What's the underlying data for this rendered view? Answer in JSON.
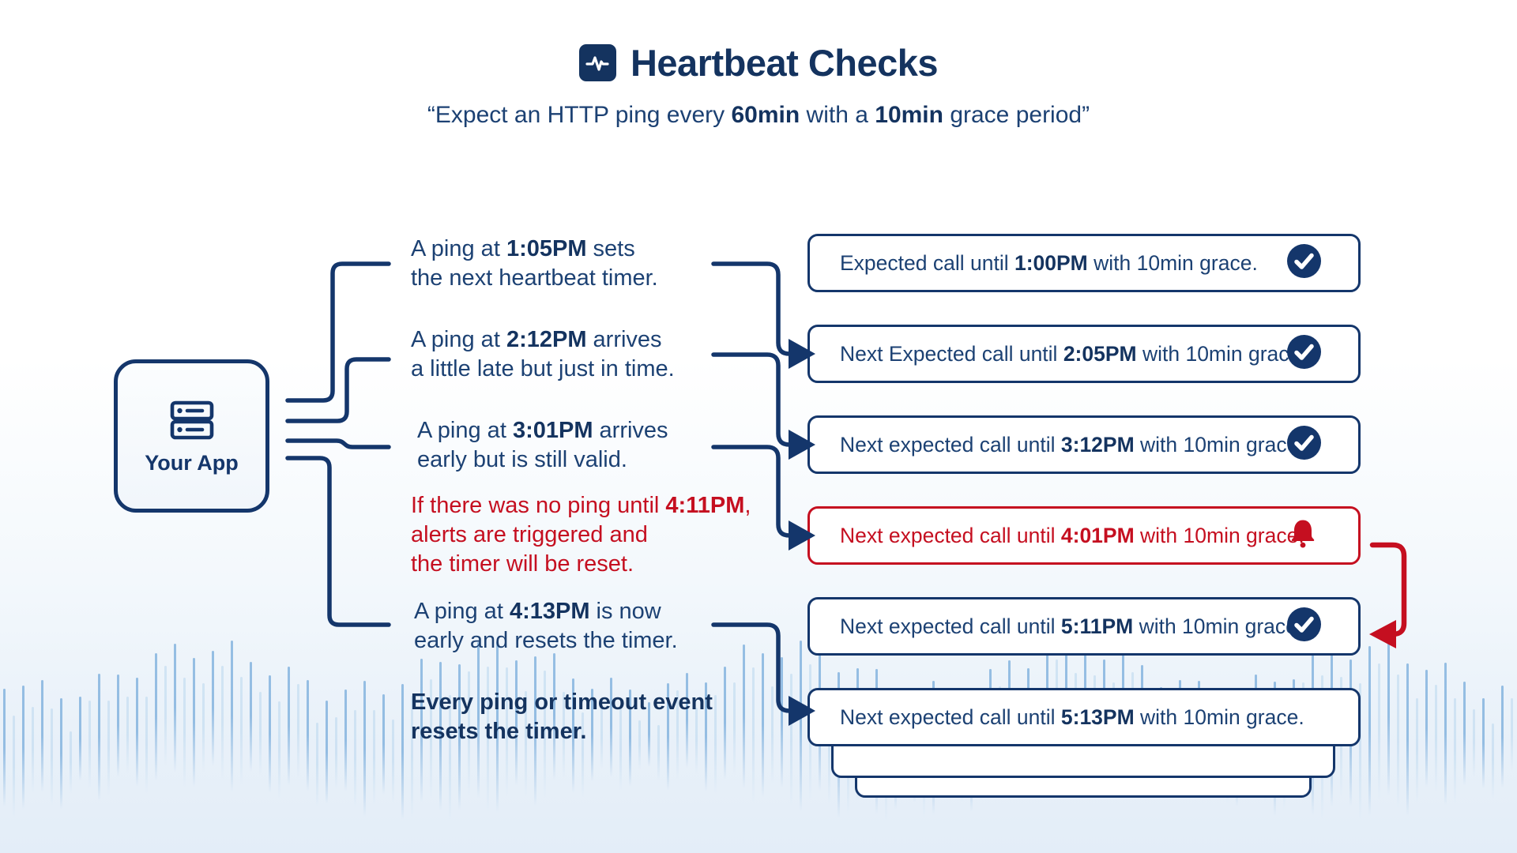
{
  "header": {
    "title": "Heartbeat Checks",
    "title_icon": "heartbeat-pulse-icon",
    "subtitle": [
      {
        "t": "“Expect an HTTP ping every "
      },
      {
        "t": "60min",
        "b": true
      },
      {
        "t": " with a "
      },
      {
        "t": "10min",
        "b": true
      },
      {
        "t": " grace period”"
      }
    ]
  },
  "app_box": {
    "icon": "server-icon",
    "label": "Your App"
  },
  "ping_labels": [
    {
      "tone": "navy",
      "lines": [
        [
          {
            "t": "A ping at "
          },
          {
            "t": "1:05PM",
            "b": true
          },
          {
            "t": " sets"
          }
        ],
        [
          {
            "t": "the next heartbeat timer."
          }
        ]
      ]
    },
    {
      "tone": "navy",
      "lines": [
        [
          {
            "t": "A ping at "
          },
          {
            "t": "2:12PM",
            "b": true
          },
          {
            "t": " arrives"
          }
        ],
        [
          {
            "t": "a little late but just in time."
          }
        ]
      ]
    },
    {
      "tone": "navy",
      "lines": [
        [
          {
            "t": "A ping at "
          },
          {
            "t": "3:01PM",
            "b": true
          },
          {
            "t": " arrives"
          }
        ],
        [
          {
            "t": "early but is still valid."
          }
        ]
      ]
    },
    {
      "tone": "red",
      "lines": [
        [
          {
            "t": "If there was no ping until "
          },
          {
            "t": "4:11PM",
            "b": true
          },
          {
            "t": ","
          }
        ],
        [
          {
            "t": "alerts are triggered and"
          }
        ],
        [
          {
            "t": "the timer will be reset."
          }
        ]
      ]
    },
    {
      "tone": "navy",
      "lines": [
        [
          {
            "t": "A ping at "
          },
          {
            "t": "4:13PM",
            "b": true
          },
          {
            "t": " is now"
          }
        ],
        [
          {
            "t": "early and resets the timer."
          }
        ]
      ]
    },
    {
      "tone": "bold",
      "lines": [
        [
          {
            "t": "Every ping or timeout event",
            "b": true
          }
        ],
        [
          {
            "t": "resets the timer.",
            "b": true
          }
        ]
      ]
    }
  ],
  "status_boxes": [
    {
      "tone": "ok",
      "icon": "check-circle-icon",
      "segments": [
        {
          "t": "Expected call until "
        },
        {
          "t": "1:00PM",
          "b": true
        },
        {
          "t": " with 10min grace."
        }
      ]
    },
    {
      "tone": "ok",
      "icon": "check-circle-icon",
      "segments": [
        {
          "t": "Next Expected call until "
        },
        {
          "t": "2:05PM",
          "b": true
        },
        {
          "t": " with 10min grace."
        }
      ]
    },
    {
      "tone": "ok",
      "icon": "check-circle-icon",
      "segments": [
        {
          "t": "Next expected call until "
        },
        {
          "t": "3:12PM",
          "b": true
        },
        {
          "t": " with 10min grace."
        }
      ]
    },
    {
      "tone": "alert",
      "icon": "bell-icon",
      "segments": [
        {
          "t": "Next expected call until "
        },
        {
          "t": "4:01PM",
          "b": true
        },
        {
          "t": " with 10min grace."
        }
      ]
    },
    {
      "tone": "ok",
      "icon": "check-circle-icon",
      "segments": [
        {
          "t": "Next expected call until "
        },
        {
          "t": "5:11PM",
          "b": true
        },
        {
          "t": " with 10min grace."
        }
      ]
    },
    {
      "tone": "ok",
      "icon": "none",
      "segments": [
        {
          "t": "Next expected call until "
        },
        {
          "t": "5:13PM",
          "b": true
        },
        {
          "t": " with 10min grace."
        }
      ]
    }
  ],
  "colors": {
    "navy": "#14366b",
    "navy_text": "#1c4173",
    "title_navy": "#14335f",
    "alert_red": "#c50f20",
    "wave_bright": "#7fb0dd",
    "wave_faint": "#bad7ee",
    "page_bottom": "#e3edf8"
  }
}
